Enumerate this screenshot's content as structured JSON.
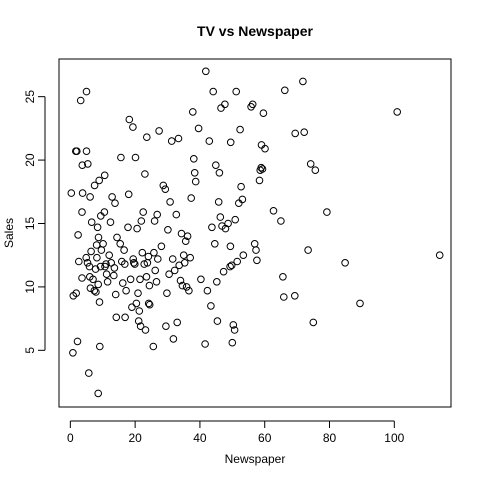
{
  "chart_data": {
    "type": "scatter",
    "title": "TV vs Newspaper",
    "xlabel": "Newspaper",
    "ylabel": "Sales",
    "xlim": [
      -3.5,
      117.5
    ],
    "ylim": [
      0.53,
      27.97
    ],
    "xticks": [
      0,
      20,
      40,
      60,
      80,
      100
    ],
    "yticks": [
      5,
      10,
      15,
      20,
      25
    ],
    "grid": false,
    "legend": "none",
    "point_color": "#000000",
    "points": [
      [
        0.3,
        17.4
      ],
      [
        0.9,
        9.3
      ],
      [
        1.7,
        20.7
      ],
      [
        1.8,
        9.5
      ],
      [
        2.0,
        20.7
      ],
      [
        2.2,
        5.7
      ],
      [
        2.4,
        14.1
      ],
      [
        2.6,
        12.0
      ],
      [
        0.8,
        4.8
      ],
      [
        3.2,
        24.7
      ],
      [
        3.6,
        15.9
      ],
      [
        3.7,
        19.6
      ],
      [
        3.8,
        17.4
      ],
      [
        3.6,
        10.7
      ],
      [
        4.9,
        12.3
      ],
      [
        5.0,
        25.4
      ],
      [
        5.0,
        20.7
      ],
      [
        5.3,
        11.9
      ],
      [
        5.4,
        19.7
      ],
      [
        5.7,
        3.2
      ],
      [
        5.9,
        11.6
      ],
      [
        6.0,
        10.8
      ],
      [
        6.1,
        17.1
      ],
      [
        6.2,
        9.9
      ],
      [
        6.4,
        12.8
      ],
      [
        6.6,
        15.1
      ],
      [
        7.0,
        10.6
      ],
      [
        7.4,
        9.7
      ],
      [
        7.5,
        18.0
      ],
      [
        7.8,
        11.4
      ],
      [
        7.9,
        9.6
      ],
      [
        8.1,
        13.3
      ],
      [
        8.2,
        12.3
      ],
      [
        8.4,
        14.7
      ],
      [
        8.6,
        10.2
      ],
      [
        8.6,
        1.6
      ],
      [
        8.7,
        13.9
      ],
      [
        8.9,
        18.4
      ],
      [
        9.0,
        8.8
      ],
      [
        9.1,
        5.3
      ],
      [
        9.3,
        11.6
      ],
      [
        9.4,
        15.6
      ],
      [
        9.6,
        12.9
      ],
      [
        10.1,
        13.4
      ],
      [
        10.5,
        15.9
      ],
      [
        10.6,
        18.8
      ],
      [
        10.7,
        11.6
      ],
      [
        11.0,
        11.8
      ],
      [
        11.2,
        11.0
      ],
      [
        11.5,
        10.4
      ],
      [
        12.0,
        12.5
      ],
      [
        12.4,
        15.1
      ],
      [
        12.6,
        11.9
      ],
      [
        12.9,
        17.1
      ],
      [
        13.4,
        10.9
      ],
      [
        13.6,
        11.5
      ],
      [
        13.8,
        16.6
      ],
      [
        14.0,
        9.4
      ],
      [
        14.2,
        7.6
      ],
      [
        14.4,
        13.9
      ],
      [
        15.4,
        13.4
      ],
      [
        15.6,
        20.2
      ],
      [
        15.9,
        12.0
      ],
      [
        16.2,
        10.3
      ],
      [
        16.6,
        12.9
      ],
      [
        16.8,
        11.8
      ],
      [
        16.9,
        7.6
      ],
      [
        17.2,
        9.7
      ],
      [
        17.8,
        14.7
      ],
      [
        18.0,
        17.3
      ],
      [
        18.2,
        23.2
      ],
      [
        18.6,
        10.6
      ],
      [
        19.0,
        8.4
      ],
      [
        19.3,
        22.6
      ],
      [
        19.4,
        12.2
      ],
      [
        19.6,
        11.9
      ],
      [
        19.9,
        11.8
      ],
      [
        20.1,
        20.2
      ],
      [
        20.4,
        8.7
      ],
      [
        20.6,
        14.6
      ],
      [
        20.9,
        9.5
      ],
      [
        21.1,
        7.3
      ],
      [
        21.3,
        8.1
      ],
      [
        21.5,
        10.6
      ],
      [
        21.7,
        6.9
      ],
      [
        21.9,
        15.2
      ],
      [
        22.2,
        12.7
      ],
      [
        22.5,
        15.9
      ],
      [
        22.8,
        11.8
      ],
      [
        23.0,
        18.9
      ],
      [
        23.2,
        6.6
      ],
      [
        23.5,
        10.8
      ],
      [
        23.6,
        21.8
      ],
      [
        23.8,
        11.9
      ],
      [
        24.1,
        12.4
      ],
      [
        24.2,
        8.7
      ],
      [
        24.4,
        10.1
      ],
      [
        24.5,
        8.6
      ],
      [
        25.6,
        5.3
      ],
      [
        25.8,
        12.7
      ],
      [
        26.0,
        15.2
      ],
      [
        26.2,
        11.3
      ],
      [
        26.6,
        10.4
      ],
      [
        26.8,
        15.7
      ],
      [
        27.0,
        12.2
      ],
      [
        27.4,
        22.3
      ],
      [
        28.1,
        13.2
      ],
      [
        28.7,
        18.0
      ],
      [
        29.3,
        17.7
      ],
      [
        29.5,
        6.9
      ],
      [
        29.8,
        9.5
      ],
      [
        30.1,
        14.5
      ],
      [
        30.5,
        11.0
      ],
      [
        30.8,
        16.7
      ],
      [
        31.3,
        21.5
      ],
      [
        31.6,
        12.2
      ],
      [
        31.8,
        5.9
      ],
      [
        32.2,
        11.3
      ],
      [
        32.7,
        15.7
      ],
      [
        33.0,
        7.2
      ],
      [
        33.4,
        21.7
      ],
      [
        33.6,
        11.7
      ],
      [
        34.0,
        10.5
      ],
      [
        34.3,
        14.2
      ],
      [
        34.6,
        10.1
      ],
      [
        35.0,
        12.5
      ],
      [
        35.3,
        11.9
      ],
      [
        35.6,
        13.6
      ],
      [
        35.9,
        10.0
      ],
      [
        36.2,
        14.0
      ],
      [
        36.6,
        9.7
      ],
      [
        37.0,
        12.3
      ],
      [
        37.3,
        17.0
      ],
      [
        37.8,
        23.8
      ],
      [
        38.1,
        20.1
      ],
      [
        38.4,
        19.0
      ],
      [
        38.7,
        18.3
      ],
      [
        39.6,
        22.5
      ],
      [
        40.3,
        10.6
      ],
      [
        41.6,
        5.5
      ],
      [
        41.8,
        27.0
      ],
      [
        42.3,
        9.7
      ],
      [
        42.9,
        21.5
      ],
      [
        43.4,
        8.5
      ],
      [
        43.7,
        14.7
      ],
      [
        44.1,
        25.4
      ],
      [
        44.6,
        13.4
      ],
      [
        44.9,
        19.6
      ],
      [
        45.2,
        10.4
      ],
      [
        45.4,
        7.3
      ],
      [
        45.8,
        16.7
      ],
      [
        46.0,
        19.0
      ],
      [
        46.3,
        15.5
      ],
      [
        46.5,
        24.1
      ],
      [
        46.8,
        14.8
      ],
      [
        47.3,
        11.2
      ],
      [
        47.7,
        24.4
      ],
      [
        47.9,
        14.6
      ],
      [
        48.7,
        15.0
      ],
      [
        49.3,
        11.6
      ],
      [
        49.4,
        13.2
      ],
      [
        49.5,
        21.4
      ],
      [
        49.8,
        11.7
      ],
      [
        50.0,
        5.6
      ],
      [
        50.3,
        7.0
      ],
      [
        50.7,
        6.6
      ],
      [
        50.9,
        15.3
      ],
      [
        51.2,
        25.4
      ],
      [
        51.5,
        12.0
      ],
      [
        52.0,
        16.6
      ],
      [
        52.4,
        22.4
      ],
      [
        52.7,
        17.9
      ],
      [
        53.1,
        16.9
      ],
      [
        53.4,
        12.5
      ],
      [
        55.8,
        24.2
      ],
      [
        56.3,
        24.4
      ],
      [
        56.9,
        13.4
      ],
      [
        57.3,
        12.9
      ],
      [
        57.6,
        12.1
      ],
      [
        58.4,
        18.4
      ],
      [
        58.6,
        19.2
      ],
      [
        58.9,
        19.4
      ],
      [
        59.0,
        21.2
      ],
      [
        59.3,
        19.3
      ],
      [
        59.6,
        23.7
      ],
      [
        60.1,
        20.9
      ],
      [
        62.7,
        16.0
      ],
      [
        65.0,
        15.2
      ],
      [
        65.6,
        10.8
      ],
      [
        65.9,
        9.2
      ],
      [
        66.2,
        25.5
      ],
      [
        69.3,
        9.3
      ],
      [
        69.4,
        22.1
      ],
      [
        71.8,
        26.2
      ],
      [
        72.2,
        22.2
      ],
      [
        73.4,
        12.9
      ],
      [
        74.2,
        19.7
      ],
      [
        75.0,
        7.2
      ],
      [
        75.6,
        19.2
      ],
      [
        79.2,
        15.9
      ],
      [
        84.8,
        11.9
      ],
      [
        89.4,
        8.7
      ],
      [
        100.9,
        23.8
      ],
      [
        114.0,
        12.5
      ]
    ]
  }
}
